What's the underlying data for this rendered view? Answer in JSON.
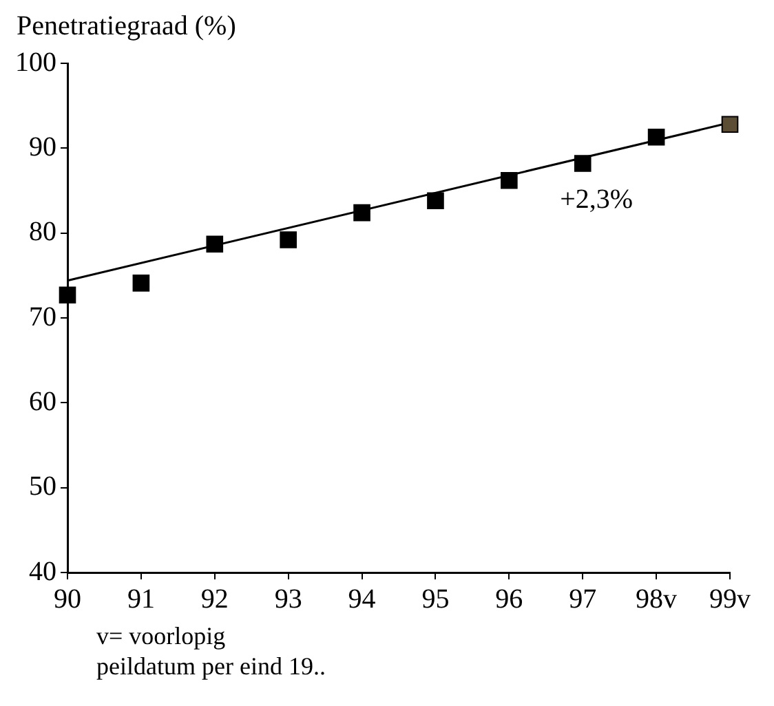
{
  "chart_data": {
    "type": "scatter",
    "ylabel": "Penetratiegraad (%)",
    "categories": [
      "90",
      "91",
      "92",
      "93",
      "94",
      "95",
      "96",
      "97",
      "98v",
      "99v"
    ],
    "series": [
      {
        "marker": "square",
        "colors": [
          "#000000",
          "#000000",
          "#000000",
          "#000000",
          "#000000",
          "#000000",
          "#000000",
          "#000000",
          "#000000",
          "#5c4e34"
        ],
        "values": [
          72.7,
          74.1,
          78.7,
          79.2,
          82.4,
          83.8,
          86.2,
          88.2,
          91.3,
          92.8
        ]
      },
      {
        "type": "line",
        "marker": "none",
        "color": "#000000",
        "x": [
          "90",
          "99v"
        ],
        "values": [
          74.4,
          93.0
        ]
      }
    ],
    "ylim": [
      40,
      100
    ],
    "yticks": [
      40,
      50,
      60,
      70,
      80,
      90,
      100
    ],
    "legend": false,
    "annotations": [
      "+2,3%",
      "v= voorlopig",
      "peildatum per eind 19.."
    ]
  }
}
